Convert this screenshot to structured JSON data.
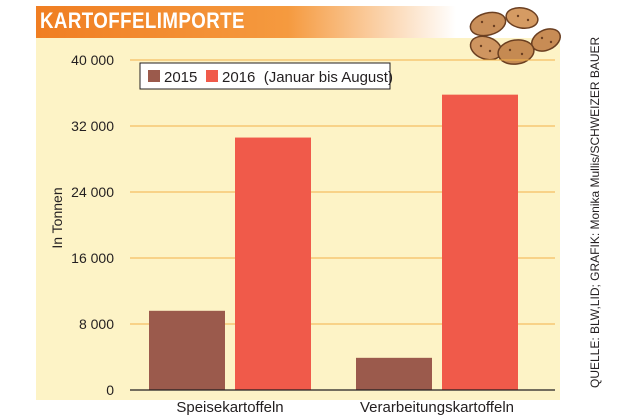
{
  "header": {
    "title": "KARTOFFELIMPORTE"
  },
  "source_note": "QUELLE: BLW,LID; GRAFIK: Monika Mullis/SCHWEIZER BAUER",
  "colors": {
    "accent": "#f07e22",
    "plot_background": "#fdf3c6",
    "series_2015": "#9b5a4c",
    "series_2016": "#f05a4a",
    "gridline": "#f2b24a"
  },
  "icons": [
    "potatoes-illustration"
  ],
  "chart_data": {
    "type": "bar",
    "title": "KARTOFFELIMPORTE",
    "xlabel": "",
    "ylabel": "In Tonnen",
    "ylim": [
      0,
      40000
    ],
    "yticks": [
      0,
      8000,
      16000,
      24000,
      32000,
      40000
    ],
    "ytick_labels": [
      "0",
      "8 000",
      "16 000",
      "24 000",
      "32 000",
      "40 000"
    ],
    "grid": true,
    "legend_position": "top-left",
    "categories": [
      "Speisekartoffeln",
      "Verarbeitungskartoffeln"
    ],
    "series": [
      {
        "name": "2015",
        "values": [
          9600,
          3900
        ]
      },
      {
        "name": "2016  (Januar bis August)",
        "values": [
          30600,
          35800
        ]
      }
    ]
  }
}
